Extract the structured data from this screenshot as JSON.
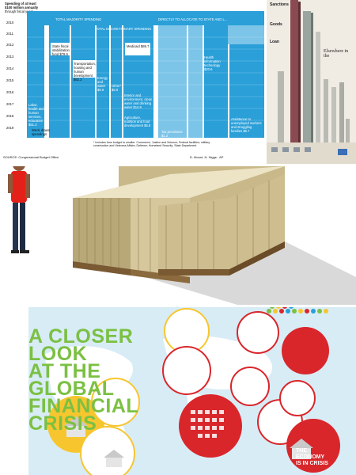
{
  "chart1": {
    "header_top": "Spending of at least",
    "header_mid": "$100 million annually",
    "header_bot": "through fiscal years",
    "years": [
      "2010",
      "2011",
      "2012",
      "2013",
      "2014",
      "2015",
      "2016",
      "2017",
      "2018",
      "2019"
    ],
    "banner_left": "TOTAL MAJORITY SPENDING",
    "banner_mid": "TOTAL DISCRETIONARY SPENDING",
    "banner_right": "DIRECTLY TO ALLOCATE TO STATE AND L...",
    "state_fiscal": "State fiscal stabilization fund $79.9",
    "transport": "Transportation, housing and human development $62.2",
    "energy": "Energy and water $8.9",
    "medicaid": "Medicaid $86.7",
    "other": "Other* $6.9",
    "interior": "Interior and environment, clean water and drinking water $14.9",
    "agriculture": "Agriculture, nutrition and food development $6.8",
    "labor": "Labor, health and human services, education $51.3",
    "tax_provisions": "Tax provisions $1.2",
    "health_info": "Health information technology $20.6",
    "assistance": "Assistance to unemployed workers and struggling families $6.7",
    "week_note": "Week drawn spendings",
    "footnote": "* Includes from budget to smaller. Commerce, Justice and Science; Federal facilities; military construction and Veterans Affairs; Defense; Homeland Security; State Department",
    "source": "SOURCE: Congressional Budget Office",
    "credit": "D. Mount, N. Higgs - AP"
  },
  "chart2": {
    "heading1": "Sanctions",
    "heading2": "Goods",
    "heading3": "Loan",
    "elsewhere": "Elsewhere in the"
  },
  "globe": {
    "title_line1": "A CLOSER LOOK",
    "title_line2": "AT THE GLOBAL",
    "title_line3": "FINANCIAL CRISIS",
    "economy_line1": "THE ECONOMY",
    "economy_line2": "IS IN CRISIS"
  },
  "colors": {
    "chart_blue": "#2a9fd8",
    "chart_light_blue": "#7cc4e8",
    "money_tan": "#c9b98a",
    "title_green": "#7bc043",
    "red_circle": "#d9262b",
    "yellow_circle": "#f7c62f"
  }
}
